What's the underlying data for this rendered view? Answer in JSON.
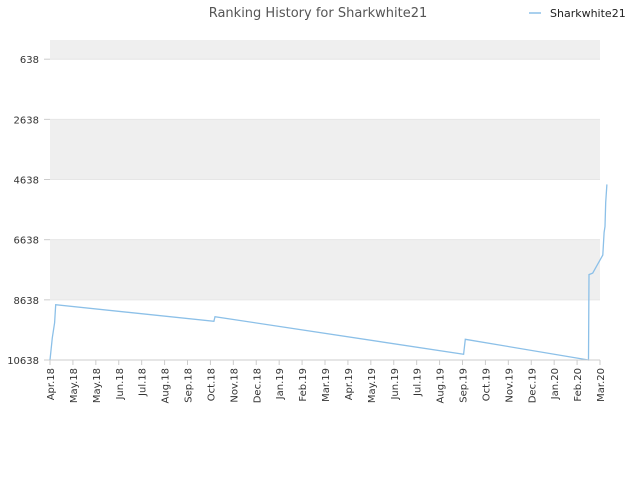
{
  "chart_data": {
    "type": "line",
    "title": "Ranking History for Sharkwhite21",
    "xlabel": "",
    "ylabel": "",
    "y_inverted": true,
    "ylim": [
      10638,
      0
    ],
    "y_ticks": [
      638,
      2638,
      4638,
      6638,
      8638,
      10638
    ],
    "x_tick_labels": [
      "Apr.18",
      "May.18",
      "May.18",
      "Jun.18",
      "Jul.18",
      "Aug.18",
      "Sep.18",
      "Oct.18",
      "Nov.18",
      "Dec.18",
      "Jan.19",
      "Feb.19",
      "Mar.19",
      "Apr.19",
      "May.19",
      "Jun.19",
      "Jul.19",
      "Aug.19",
      "Sep.19",
      "Oct.19",
      "Nov.19",
      "Dec.19",
      "Jan.20",
      "Feb.20",
      "Mar.20"
    ],
    "grid": true,
    "legend_position": "top-right",
    "series": [
      {
        "name": "Sharkwhite21",
        "color": "#8cc0e8",
        "points": [
          [
            "Apr.18",
            10638
          ],
          [
            "Apr.18",
            9900
          ],
          [
            "Apr.18",
            9400
          ],
          [
            "Apr.18",
            8800
          ],
          [
            "Oct.18",
            9350
          ],
          [
            "Oct.18",
            9200
          ],
          [
            "Sep.19",
            10450
          ],
          [
            "Sep.19",
            9950
          ],
          [
            "Feb.20",
            10638
          ],
          [
            "Feb.20",
            7800
          ],
          [
            "Feb.20",
            7750
          ],
          [
            "Mar.20",
            7150
          ],
          [
            "Mar.20",
            6400
          ],
          [
            "Mar.20",
            6200
          ],
          [
            "Mar.20",
            5400
          ],
          [
            "Mar.20",
            4800
          ]
        ]
      }
    ]
  },
  "legend": {
    "label": "Sharkwhite21"
  }
}
